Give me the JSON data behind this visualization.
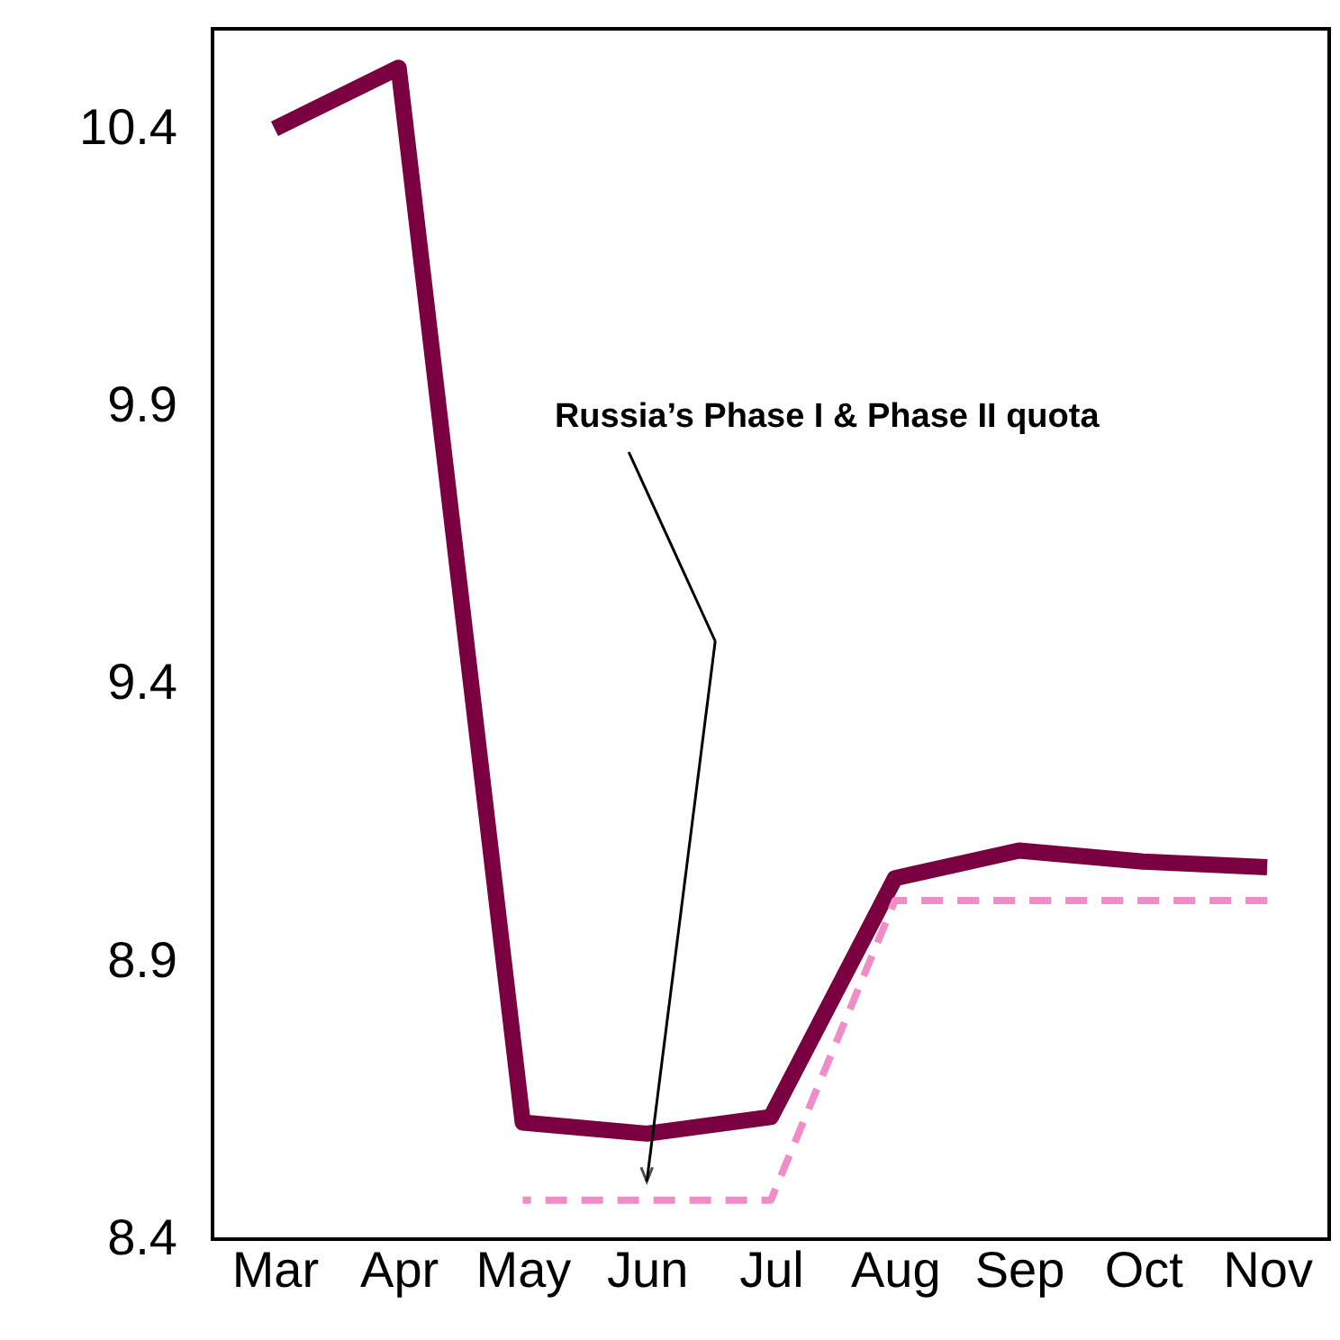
{
  "chart_data": {
    "type": "line",
    "categories": [
      "Mar",
      "Apr",
      "May",
      "Jun",
      "Jul",
      "Aug",
      "Sep",
      "Oct",
      "Nov"
    ],
    "series": [
      {
        "color": "#7b0041",
        "values": [
          10.4,
          10.51,
          8.61,
          8.59,
          8.62,
          9.05,
          9.1,
          9.08,
          9.07
        ],
        "line_style": "solid"
      },
      {
        "color": "#f08cc8",
        "values": [
          null,
          null,
          8.47,
          8.47,
          8.47,
          9.01,
          9.01,
          9.01,
          9.01
        ],
        "line_style": "dashed"
      }
    ],
    "ylim": [
      8.4,
      10.58
    ],
    "yticks": [
      8.4,
      8.9,
      9.4,
      9.9,
      10.4
    ],
    "annotations": [
      "Russia’s Phase I & Phase II quota"
    ],
    "grid": false,
    "marker": "none"
  }
}
